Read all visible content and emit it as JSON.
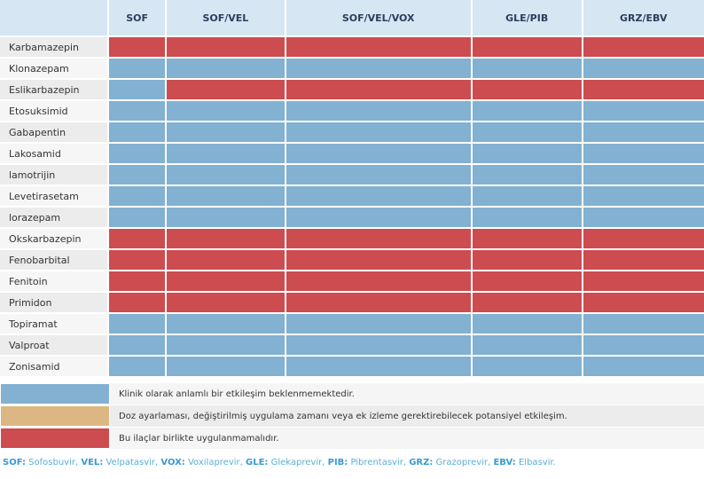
{
  "colors": {
    "blue": "#82b1d1",
    "orange": "#dcb783",
    "red": "#cc4c4f"
  },
  "columns": [
    "SOF",
    "SOF/VEL",
    "SOF/VEL/VOX",
    "GLE/PIB",
    "GRZ/EBV"
  ],
  "rows": [
    {
      "drug": "Karbamazepin",
      "cells": [
        "red",
        "red",
        "red",
        "red",
        "red"
      ]
    },
    {
      "drug": "Klonazepam",
      "cells": [
        "blue",
        "blue",
        "blue",
        "blue",
        "blue"
      ]
    },
    {
      "drug": "Eslikarbazepin",
      "cells": [
        "blue",
        "red",
        "red",
        "red",
        "red"
      ]
    },
    {
      "drug": "Etosuksimid",
      "cells": [
        "blue",
        "blue",
        "blue",
        "blue",
        "blue"
      ]
    },
    {
      "drug": "Gabapentin",
      "cells": [
        "blue",
        "blue",
        "blue",
        "blue",
        "blue"
      ]
    },
    {
      "drug": "Lakosamid",
      "cells": [
        "blue",
        "blue",
        "blue",
        "blue",
        "blue"
      ]
    },
    {
      "drug": "lamotrijin",
      "cells": [
        "blue",
        "blue",
        "blue",
        "blue",
        "blue"
      ]
    },
    {
      "drug": "Levetirasetam",
      "cells": [
        "blue",
        "blue",
        "blue",
        "blue",
        "blue"
      ]
    },
    {
      "drug": "lorazepam",
      "cells": [
        "blue",
        "blue",
        "blue",
        "blue",
        "blue"
      ]
    },
    {
      "drug": "Okskarbazepin",
      "cells": [
        "red",
        "red",
        "red",
        "red",
        "red"
      ]
    },
    {
      "drug": "Fenobarbital",
      "cells": [
        "red",
        "red",
        "red",
        "red",
        "red"
      ]
    },
    {
      "drug": "Fenitoin",
      "cells": [
        "red",
        "red",
        "red",
        "red",
        "red"
      ]
    },
    {
      "drug": "Primidon",
      "cells": [
        "red",
        "red",
        "red",
        "red",
        "red"
      ]
    },
    {
      "drug": "Topiramat",
      "cells": [
        "blue",
        "blue",
        "blue",
        "blue",
        "blue"
      ]
    },
    {
      "drug": "Valproat",
      "cells": [
        "blue",
        "blue",
        "blue",
        "blue",
        "blue"
      ]
    },
    {
      "drug": "Zonisamid",
      "cells": [
        "blue",
        "blue",
        "blue",
        "blue",
        "blue"
      ]
    }
  ],
  "legend": [
    {
      "color": "blue",
      "text": "Klinik olarak anlamlı bir etkileşim beklenmemektedir."
    },
    {
      "color": "orange",
      "text": "Doz ayarlaması, değiştirilmiş uygulama zamanı veya ek izleme gerektirebilecek potansiyel etkileşim."
    },
    {
      "color": "red",
      "text": "Bu ilaçlar birlikte uygulanmamalıdır."
    }
  ],
  "footer": [
    {
      "abbr": "SOF:",
      "name": " Sofosbuvir, "
    },
    {
      "abbr": "VEL:",
      "name": " Velpatasvir, "
    },
    {
      "abbr": "VOX:",
      "name": " Voxilaprevir, "
    },
    {
      "abbr": "GLE:",
      "name": " Glekaprevir, "
    },
    {
      "abbr": "PIB:",
      "name": " Pibrentasvir, "
    },
    {
      "abbr": "GRZ:",
      "name": " Grazoprevir, "
    },
    {
      "abbr": "EBV:",
      "name": " Elbasvir."
    }
  ]
}
